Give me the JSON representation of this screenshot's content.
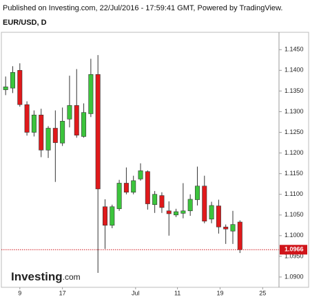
{
  "chart_data": {
    "type": "candlestick",
    "title": "Published on Investing.com, 22/Jul/2016 - 17:59:41 GMT, Powered by TradingView.",
    "subtitle": "EUR/USD, D",
    "brand": "Investing",
    "brand_suffix": ".com",
    "categories": [
      null,
      null,
      null,
      null,
      null,
      null,
      null,
      null,
      null,
      null,
      null,
      null,
      null,
      null,
      null,
      null,
      null,
      null,
      null,
      null,
      null,
      null,
      null,
      null,
      null,
      null,
      null,
      null,
      null,
      null,
      null,
      null,
      null,
      null
    ],
    "open": [
      1.1353,
      1.1357,
      1.14,
      1.1317,
      1.125,
      1.1292,
      1.1207,
      1.126,
      1.1224,
      1.1282,
      1.1315,
      1.124,
      1.1295,
      1.139,
      1.107,
      1.1025,
      1.1065,
      1.1127,
      1.1105,
      1.1137,
      1.1155,
      1.1075,
      1.1097,
      1.106,
      1.105,
      1.1054,
      1.106,
      1.1087,
      1.112,
      1.104,
      1.1072,
      1.1021,
      1.1011,
      1.1033
    ],
    "high": [
      1.1385,
      1.141,
      1.1417,
      1.1325,
      1.1303,
      1.1307,
      1.1265,
      1.1303,
      1.131,
      1.1387,
      1.1403,
      1.132,
      1.1428,
      1.1437,
      1.1088,
      1.1075,
      1.1135,
      1.1165,
      1.1145,
      1.1175,
      1.1158,
      1.1108,
      1.1105,
      1.1083,
      1.1065,
      1.1127,
      1.11,
      1.1167,
      1.1145,
      1.1082,
      1.1087,
      1.1027,
      1.106,
      1.1037
    ],
    "low": [
      1.134,
      1.1345,
      1.1312,
      1.1242,
      1.124,
      1.119,
      1.1188,
      1.113,
      1.1217,
      1.1262,
      1.1237,
      1.1237,
      1.1287,
      1.091,
      1.0968,
      1.1018,
      1.106,
      1.11,
      1.11,
      1.1133,
      1.1063,
      1.1055,
      1.1055,
      1.1,
      1.1045,
      1.1042,
      1.1048,
      1.1073,
      1.103,
      1.103,
      1.1005,
      1.098,
      1.098,
      1.0958
    ],
    "close": [
      1.136,
      1.1395,
      1.1317,
      1.125,
      1.1292,
      1.1207,
      1.126,
      1.1225,
      1.1277,
      1.1315,
      1.1243,
      1.1298,
      1.139,
      1.1113,
      1.1025,
      1.107,
      1.1127,
      1.1105,
      1.1133,
      1.1157,
      1.1077,
      1.11,
      1.1068,
      1.1053,
      1.1058,
      1.106,
      1.1088,
      1.112,
      1.1035,
      1.1073,
      1.1021,
      1.1016,
      1.1027,
      1.0966
    ],
    "up_color": "#3cc43c",
    "down_color": "#e0191b",
    "last_price": 1.0966,
    "last_price_color": "#d0141a",
    "xlim": [
      -0.6,
      38.5
    ],
    "xticks": [
      {
        "value": 2,
        "label": "9"
      },
      {
        "value": 8,
        "label": "17"
      },
      {
        "value": 18.3,
        "label": "Jul"
      },
      {
        "value": 24.2,
        "label": "11"
      },
      {
        "value": 30.2,
        "label": "19"
      },
      {
        "value": 36.2,
        "label": "25"
      }
    ],
    "ylim": [
      1.0875,
      1.1492
    ],
    "yticks": [
      {
        "value": 1.09,
        "label": "1.0900"
      },
      {
        "value": 1.095,
        "label": "1.0950"
      },
      {
        "value": 1.1,
        "label": "1.1000"
      },
      {
        "value": 1.105,
        "label": "1.1050"
      },
      {
        "value": 1.11,
        "label": "1.1100"
      },
      {
        "value": 1.115,
        "label": "1.1150"
      },
      {
        "value": 1.12,
        "label": "1.1200"
      },
      {
        "value": 1.125,
        "label": "1.1250"
      },
      {
        "value": 1.13,
        "label": "1.1300"
      },
      {
        "value": 1.135,
        "label": "1.1350"
      },
      {
        "value": 1.14,
        "label": "1.1400"
      },
      {
        "value": 1.145,
        "label": "1.1450"
      }
    ],
    "grid": false
  }
}
